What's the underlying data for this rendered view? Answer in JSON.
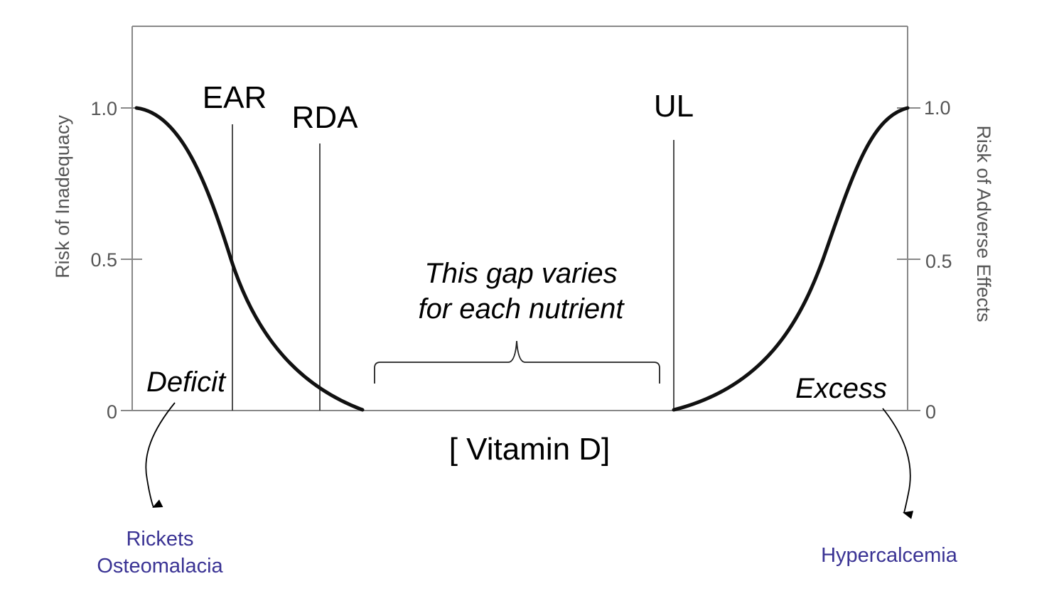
{
  "left_axis": {
    "label": "Risk of Inadequacy",
    "ticks": [
      "1.0",
      "0.5",
      "0"
    ]
  },
  "right_axis": {
    "label": "Risk of Adverse Effects",
    "ticks": [
      "1.0",
      "0.5",
      "0"
    ]
  },
  "x_axis": {
    "label": "[ Vitamin D]"
  },
  "markers": {
    "ear": "EAR",
    "rda": "RDA",
    "ul": "UL"
  },
  "gap_note": {
    "line1": "This gap varies",
    "line2": "for each nutrient"
  },
  "regions": {
    "deficit": "Deficit",
    "excess": "Excess"
  },
  "outcomes": {
    "deficit_line1": "Rickets",
    "deficit_line2": "Osteomalacia",
    "excess": "Hypercalcemia"
  },
  "colors": {
    "outcome_text": "#3a3394",
    "curve": "#111111",
    "axis": "#888888"
  }
}
